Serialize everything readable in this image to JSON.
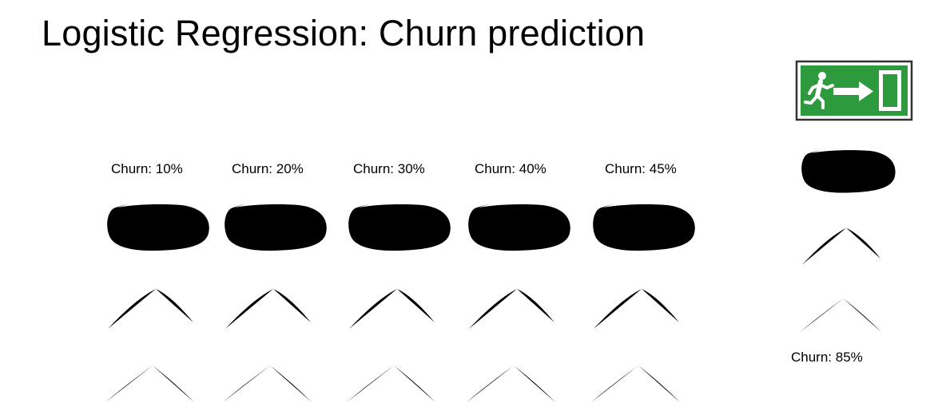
{
  "title": "Logistic Regression: Churn prediction",
  "people": [
    {
      "label": "Churn: 10%",
      "churn_percent": 10
    },
    {
      "label": "Churn: 20%",
      "churn_percent": 20
    },
    {
      "label": "Churn: 30%",
      "churn_percent": 30
    },
    {
      "label": "Churn: 40%",
      "churn_percent": 40
    },
    {
      "label": "Churn: 45%",
      "churn_percent": 45
    },
    {
      "label": "Churn: 85%",
      "churn_percent": 85
    }
  ],
  "exit_sign": {
    "icon": "emergency-exit-icon",
    "color": "#2e9a3e"
  }
}
